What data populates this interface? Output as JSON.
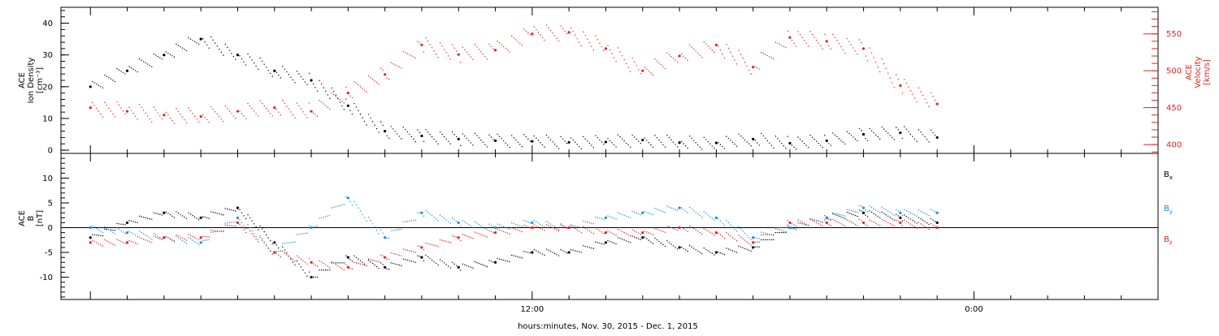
{
  "xlabel": "hours:minutes, Nov. 30, 2015 - Dec. 1, 2015",
  "x_tick_labels": [
    "12:00",
    "0:00"
  ],
  "colors": {
    "black": "#000000",
    "red": "#e8211d",
    "blue": "#1c8ae0"
  },
  "chart_data": [
    {
      "type": "scatter",
      "title": "",
      "xlabel": "hours:minutes, Nov. 30, 2015 - Dec. 1, 2015",
      "x_ticks": [
        "12:00",
        "0:00"
      ],
      "xlim_hours": [
        -0.8,
        29.0
      ],
      "y_left": {
        "label_lines": [
          "ACE",
          "Ion Density",
          "[cm⁻³]"
        ],
        "ticks": [
          0,
          10,
          20,
          30,
          40
        ],
        "ylim": [
          -1,
          45
        ]
      },
      "y_right": {
        "label_lines": [
          "ACE",
          "Velocity",
          "[km/s]"
        ],
        "ticks": [
          400,
          450,
          500,
          550
        ],
        "ylim": [
          388,
          586
        ]
      },
      "series": [
        {
          "name": "",
          "axis": "left",
          "color": "#000000",
          "x": [
            0,
            1,
            2,
            3,
            4,
            5,
            6,
            7,
            8,
            9,
            10,
            11,
            12,
            13,
            14,
            15,
            16,
            17,
            18,
            19,
            20,
            21,
            22,
            23
          ],
          "y": [
            20,
            25,
            30,
            35,
            30,
            25,
            22,
            14,
            6,
            4.5,
            3.5,
            3,
            2.8,
            2.5,
            2.6,
            3.2,
            2.4,
            2.3,
            3.5,
            2.2,
            3,
            5,
            5.5,
            4
          ]
        },
        {
          "name": "",
          "axis": "right",
          "color": "#e8211d",
          "x": [
            0,
            1,
            2,
            3,
            4,
            5,
            6,
            7,
            8,
            9,
            10,
            11,
            12,
            13,
            14,
            15,
            16,
            17,
            18,
            19,
            20,
            21,
            22,
            23
          ],
          "y": [
            450,
            445,
            440,
            438,
            445,
            450,
            445,
            470,
            495,
            535,
            522,
            528,
            550,
            552,
            530,
            500,
            520,
            535,
            505,
            545,
            540,
            530,
            480,
            455
          ]
        }
      ]
    },
    {
      "type": "scatter",
      "title": "",
      "xlabel": "hours:minutes, Nov. 30, 2015 - Dec. 1, 2015",
      "x_ticks": [
        "12:00",
        "0:00"
      ],
      "xlim_hours": [
        -0.8,
        29.0
      ],
      "y_left": {
        "label_lines": [
          "ACE",
          "B",
          "[nT]"
        ],
        "ticks": [
          -10,
          -5,
          0,
          5,
          10
        ],
        "ylim": [
          -14.5,
          15
        ]
      },
      "zero_line": true,
      "series": [
        {
          "name": "Bx",
          "color": "#000000",
          "x": [
            0,
            1,
            2,
            3,
            4,
            5,
            6,
            7,
            8,
            9,
            10,
            11,
            12,
            13,
            14,
            15,
            16,
            17,
            18,
            19,
            20,
            21,
            22,
            23
          ],
          "y": [
            -2,
            1,
            3,
            2,
            4,
            -3,
            -10,
            -6,
            -8,
            -6,
            -8,
            -7,
            -5,
            -5,
            -3,
            -2,
            -4,
            -5,
            -4,
            0,
            2,
            3,
            2,
            1
          ]
        },
        {
          "name": "By",
          "color": "#1c8ae0",
          "x": [
            0,
            1,
            2,
            3,
            4,
            5,
            6,
            7,
            8,
            9,
            10,
            11,
            12,
            13,
            14,
            15,
            16,
            17,
            18,
            19,
            20,
            21,
            22,
            23
          ],
          "y": [
            0,
            -1,
            -2,
            -3,
            2,
            -5,
            0,
            6,
            -2,
            3,
            1,
            0,
            1,
            0,
            2,
            3,
            4,
            2,
            -2,
            0,
            2,
            4,
            3,
            3
          ]
        },
        {
          "name": "Bz",
          "color": "#e8211d",
          "x": [
            0,
            1,
            2,
            3,
            4,
            5,
            6,
            7,
            8,
            9,
            10,
            11,
            12,
            13,
            14,
            15,
            16,
            17,
            18,
            19,
            20,
            21,
            22,
            23
          ],
          "y": [
            -3,
            -3,
            -2,
            -2,
            1,
            -5,
            -7,
            -8,
            -6,
            -4,
            -2,
            -1,
            0,
            0,
            -1,
            -1,
            0,
            -1,
            -3,
            1,
            1,
            1,
            1,
            0
          ]
        }
      ]
    }
  ]
}
